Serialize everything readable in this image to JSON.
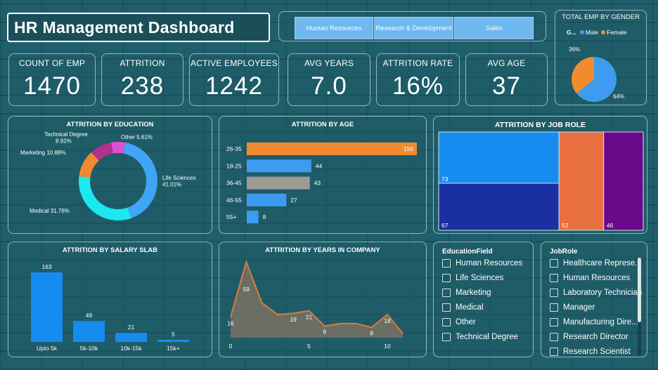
{
  "header": {
    "title": "HR Management Dashboard"
  },
  "slicer": {
    "buttons": [
      "Human Resources",
      "Research & Development",
      "Sales"
    ]
  },
  "kpis": [
    {
      "label": "COUNT OF EMP",
      "value": "1470"
    },
    {
      "label": "ATTRITION",
      "value": "238"
    },
    {
      "label": "ACTIVE EMPLOYEES",
      "value": "1242"
    },
    {
      "label": "AVG YEARS",
      "value": "7.0"
    },
    {
      "label": "ATTRITION RATE",
      "value": "16%"
    },
    {
      "label": "AVG AGE",
      "value": "37"
    }
  ],
  "gender": {
    "title": "TOTAL EMP BY GENDER",
    "legend_title": "G...",
    "male_label": "Male",
    "female_label": "Female",
    "male_pct_label": "64%",
    "female_pct_label": "36%",
    "colors": {
      "male": "#3d9cf0",
      "female": "#f28a30"
    }
  },
  "education": {
    "title": "ATTRITION BY EDUCATION"
  },
  "age": {
    "title": "ATTRITION BY AGE"
  },
  "jobrole": {
    "title": "ATTRITION BY JOB ROLE"
  },
  "salary": {
    "title": "ATTRITION BY SALARY SLAB"
  },
  "years": {
    "title": "ATTRITION BY YEARS IN COMPANY"
  },
  "education_filter": {
    "title": "EducationField",
    "items": [
      "Human Resources",
      "Life Sciences",
      "Marketing",
      "Medical",
      "Other",
      "Technical Degree"
    ]
  },
  "jobrole_filter": {
    "title": "JobRole",
    "items": [
      "Healthcare Represe...",
      "Human Resources",
      "Laboratory Technician",
      "Manager",
      "Manufacturing Dire...",
      "Research Director",
      "Research Scientist"
    ]
  },
  "chart_data": [
    {
      "type": "pie",
      "title": "TOTAL EMP BY GENDER",
      "categories": [
        "Male",
        "Female"
      ],
      "values": [
        64,
        36
      ],
      "labels": [
        "64%",
        "36%"
      ]
    },
    {
      "type": "pie",
      "title": "ATTRITION BY EDUCATION",
      "categories": [
        "Life Sciences",
        "Medical",
        "Marketing",
        "Technical Degree",
        "Other"
      ],
      "values": [
        41.01,
        31.76,
        10.88,
        8.92,
        5.61
      ],
      "labels": [
        "Life Sciences\n41.01%",
        "Medical 31.76%",
        "Marketing 10.88%",
        "Technical Degree\n8.92%",
        "Other 5.61%"
      ],
      "colors": [
        "#3fa5f5",
        "#1de8f0",
        "#f08a30",
        "#b0308a",
        "#e04fd0"
      ]
    },
    {
      "type": "bar",
      "orientation": "horizontal",
      "title": "ATTRITION BY AGE",
      "categories": [
        "26-35",
        "18-25",
        "36-45",
        "46-55",
        "55+"
      ],
      "values": [
        116,
        44,
        43,
        27,
        8
      ],
      "colors": [
        "#f28a30",
        "#3d9cf0",
        "#a09a94",
        "#3d9cf0",
        "#3d9cf0"
      ]
    },
    {
      "type": "treemap",
      "title": "ATTRITION BY JOB ROLE",
      "values": [
        73,
        67,
        52,
        46
      ],
      "labels": [
        "73",
        "67",
        "52",
        "46"
      ],
      "colors": [
        "#168cf0",
        "#1a2fa0",
        "#e87040",
        "#6a0a8a"
      ]
    },
    {
      "type": "bar",
      "title": "ATTRITION BY SALARY SLAB",
      "categories": [
        "Upto 5k",
        "5k-10k",
        "10k-15k",
        "15k+"
      ],
      "values": [
        163,
        49,
        21,
        5
      ]
    },
    {
      "type": "area",
      "title": "ATTRITION BY YEARS IN COMPANY",
      "x": [
        0,
        1,
        2,
        3,
        4,
        5,
        6,
        7,
        8,
        9,
        10,
        11
      ],
      "values": [
        16,
        59,
        27,
        18,
        19,
        21,
        9,
        11,
        11,
        8,
        18,
        3
      ],
      "data_labels": {
        "0": "16",
        "1": "59",
        "4": "19",
        "5": "21",
        "6": "9",
        "9": "8",
        "10": "18"
      },
      "xticks": [
        "0",
        "5",
        "10"
      ]
    }
  ]
}
